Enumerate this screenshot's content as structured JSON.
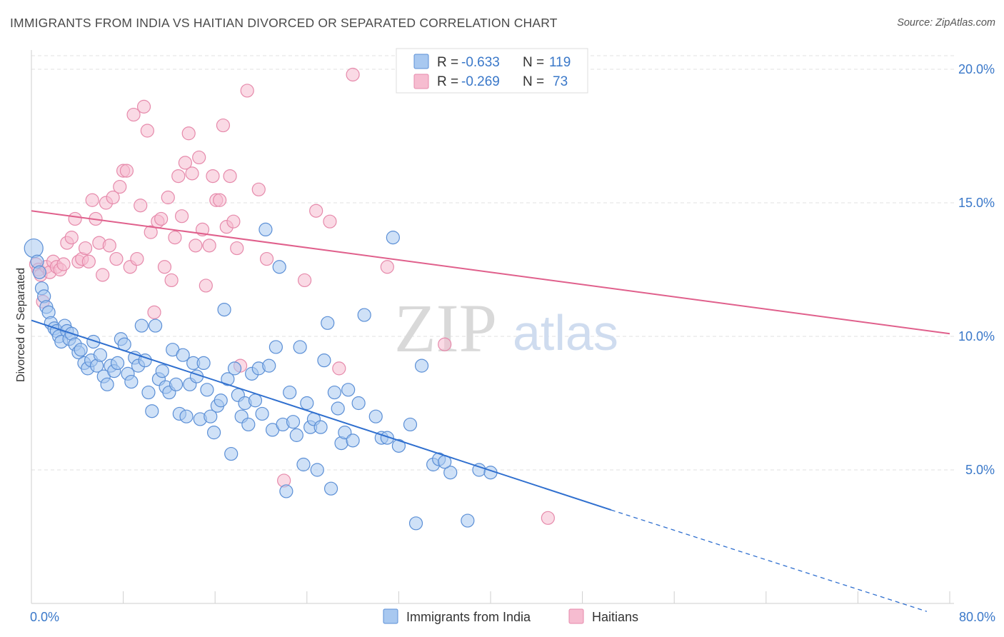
{
  "title": "IMMIGRANTS FROM INDIA VS HAITIAN DIVORCED OR SEPARATED CORRELATION CHART",
  "source": "Source: ZipAtlas.com",
  "watermark": {
    "zip": "ZIP",
    "atlas": "atlas"
  },
  "legend": {
    "r_label": "R =",
    "n_label": "N =",
    "india": {
      "r": "-0.633",
      "n": "119"
    },
    "haiti": {
      "r": "-0.269",
      "n": "73"
    }
  },
  "colors": {
    "india_fill": "#a8c8f0",
    "india_stroke": "#5b8fd6",
    "india_line": "#2f6fcf",
    "haiti_fill": "#f6bcd0",
    "haiti_stroke": "#e68aab",
    "haiti_line": "#e0608c",
    "tick_text": "#3a78c9",
    "grid": "#e1e1e1"
  },
  "chart_data": {
    "type": "scatter",
    "title": "IMMIGRANTS FROM INDIA VS HAITIAN DIVORCED OR SEPARATED CORRELATION CHART",
    "xlabel": "",
    "ylabel": "Divorced or Separated",
    "xlim": [
      0,
      80
    ],
    "ylim": [
      0,
      20
    ],
    "x_tick_labels": [
      "0.0%",
      "80.0%"
    ],
    "y_ticks": [
      5,
      10,
      15,
      20
    ],
    "y_tick_labels": [
      "5.0%",
      "10.0%",
      "15.0%",
      "20.0%"
    ],
    "grid": true,
    "legend_position": "top-center",
    "series": [
      {
        "name": "Immigrants from India",
        "color": "#a8c8f0",
        "trend": {
          "x0": 0,
          "y0": 10.6,
          "x1": 50.5,
          "y1": 3.5,
          "dashed_to_x": 78,
          "dashed_to_y": -0.3
        },
        "points": [
          [
            0.2,
            13.3
          ],
          [
            0.5,
            12.8
          ],
          [
            0.7,
            12.4
          ],
          [
            0.9,
            11.8
          ],
          [
            1.1,
            11.5
          ],
          [
            1.3,
            11.1
          ],
          [
            1.5,
            10.9
          ],
          [
            1.7,
            10.5
          ],
          [
            2.0,
            10.3
          ],
          [
            2.2,
            10.2
          ],
          [
            2.4,
            10.0
          ],
          [
            2.6,
            9.8
          ],
          [
            2.9,
            10.4
          ],
          [
            3.1,
            10.2
          ],
          [
            3.3,
            9.9
          ],
          [
            3.5,
            10.1
          ],
          [
            3.8,
            9.7
          ],
          [
            4.1,
            9.4
          ],
          [
            4.3,
            9.5
          ],
          [
            4.6,
            9.0
          ],
          [
            4.9,
            8.8
          ],
          [
            5.2,
            9.1
          ],
          [
            5.4,
            9.8
          ],
          [
            5.7,
            8.9
          ],
          [
            6.0,
            9.3
          ],
          [
            6.3,
            8.5
          ],
          [
            6.6,
            8.2
          ],
          [
            6.9,
            8.9
          ],
          [
            7.2,
            8.7
          ],
          [
            7.5,
            9.0
          ],
          [
            7.8,
            9.9
          ],
          [
            8.1,
            9.7
          ],
          [
            8.4,
            8.6
          ],
          [
            8.7,
            8.3
          ],
          [
            9.0,
            9.2
          ],
          [
            9.3,
            8.9
          ],
          [
            9.6,
            10.4
          ],
          [
            9.9,
            9.1
          ],
          [
            10.2,
            7.9
          ],
          [
            10.5,
            7.2
          ],
          [
            10.8,
            10.4
          ],
          [
            11.1,
            8.4
          ],
          [
            11.4,
            8.7
          ],
          [
            11.7,
            8.1
          ],
          [
            12.0,
            7.9
          ],
          [
            12.3,
            9.5
          ],
          [
            12.6,
            8.2
          ],
          [
            12.9,
            7.1
          ],
          [
            13.2,
            9.3
          ],
          [
            13.5,
            7.0
          ],
          [
            13.8,
            8.2
          ],
          [
            14.1,
            9.0
          ],
          [
            14.4,
            8.5
          ],
          [
            14.7,
            6.9
          ],
          [
            15.0,
            9.0
          ],
          [
            15.3,
            8.0
          ],
          [
            15.6,
            7.0
          ],
          [
            15.9,
            6.4
          ],
          [
            16.2,
            7.4
          ],
          [
            16.5,
            7.6
          ],
          [
            16.8,
            11.0
          ],
          [
            17.1,
            8.4
          ],
          [
            17.4,
            5.6
          ],
          [
            17.7,
            8.8
          ],
          [
            18.0,
            7.8
          ],
          [
            18.3,
            7.0
          ],
          [
            18.6,
            7.5
          ],
          [
            18.9,
            6.7
          ],
          [
            19.2,
            8.6
          ],
          [
            19.5,
            7.6
          ],
          [
            19.8,
            8.8
          ],
          [
            20.1,
            7.1
          ],
          [
            20.4,
            14.0
          ],
          [
            20.7,
            8.9
          ],
          [
            21.0,
            6.5
          ],
          [
            21.3,
            9.6
          ],
          [
            21.6,
            12.6
          ],
          [
            21.9,
            6.7
          ],
          [
            22.2,
            4.2
          ],
          [
            22.5,
            7.9
          ],
          [
            22.8,
            6.8
          ],
          [
            23.1,
            6.3
          ],
          [
            23.4,
            9.6
          ],
          [
            23.7,
            5.2
          ],
          [
            24.0,
            7.5
          ],
          [
            24.3,
            6.6
          ],
          [
            24.6,
            6.9
          ],
          [
            24.9,
            5.0
          ],
          [
            25.2,
            6.6
          ],
          [
            25.5,
            9.1
          ],
          [
            25.8,
            10.5
          ],
          [
            26.1,
            4.3
          ],
          [
            26.4,
            7.9
          ],
          [
            26.7,
            7.3
          ],
          [
            27.0,
            6.0
          ],
          [
            27.3,
            6.4
          ],
          [
            27.6,
            8.0
          ],
          [
            28.5,
            7.5
          ],
          [
            29.0,
            10.8
          ],
          [
            30.0,
            7.0
          ],
          [
            30.5,
            6.2
          ],
          [
            31.0,
            6.2
          ],
          [
            32.0,
            5.9
          ],
          [
            33.0,
            6.7
          ],
          [
            33.5,
            3.0
          ],
          [
            31.5,
            13.7
          ],
          [
            34.0,
            8.9
          ],
          [
            35.0,
            5.2
          ],
          [
            35.5,
            5.4
          ],
          [
            36.5,
            4.9
          ],
          [
            38.0,
            3.1
          ],
          [
            39.0,
            5.0
          ],
          [
            40.0,
            4.9
          ],
          [
            36.0,
            5.3
          ],
          [
            28.0,
            6.1
          ]
        ]
      },
      {
        "name": "Haitians",
        "color": "#f6bcd0",
        "trend": {
          "x0": 0,
          "y0": 14.7,
          "x1": 80,
          "y1": 10.1
        },
        "points": [
          [
            0.4,
            12.7
          ],
          [
            0.6,
            12.5
          ],
          [
            0.8,
            12.3
          ],
          [
            1.0,
            11.3
          ],
          [
            1.3,
            12.6
          ],
          [
            1.6,
            12.4
          ],
          [
            1.9,
            12.8
          ],
          [
            2.2,
            12.6
          ],
          [
            2.5,
            12.5
          ],
          [
            2.8,
            12.7
          ],
          [
            3.1,
            13.5
          ],
          [
            3.5,
            13.7
          ],
          [
            3.8,
            14.4
          ],
          [
            4.1,
            12.8
          ],
          [
            4.4,
            12.9
          ],
          [
            4.7,
            13.3
          ],
          [
            5.0,
            12.8
          ],
          [
            5.3,
            15.1
          ],
          [
            5.6,
            14.4
          ],
          [
            5.9,
            13.5
          ],
          [
            6.2,
            12.3
          ],
          [
            6.5,
            15.0
          ],
          [
            6.8,
            13.4
          ],
          [
            7.1,
            15.2
          ],
          [
            7.4,
            12.9
          ],
          [
            7.7,
            15.6
          ],
          [
            8.0,
            16.2
          ],
          [
            8.3,
            16.2
          ],
          [
            8.6,
            12.6
          ],
          [
            8.9,
            18.3
          ],
          [
            9.2,
            12.9
          ],
          [
            9.5,
            14.9
          ],
          [
            9.8,
            18.6
          ],
          [
            10.1,
            17.7
          ],
          [
            10.4,
            13.9
          ],
          [
            10.7,
            10.9
          ],
          [
            11.0,
            14.3
          ],
          [
            11.3,
            14.4
          ],
          [
            11.6,
            12.6
          ],
          [
            11.9,
            15.2
          ],
          [
            12.2,
            12.1
          ],
          [
            12.5,
            13.7
          ],
          [
            12.8,
            16.0
          ],
          [
            13.1,
            14.5
          ],
          [
            13.4,
            16.5
          ],
          [
            13.7,
            17.6
          ],
          [
            14.0,
            16.1
          ],
          [
            14.3,
            13.4
          ],
          [
            14.6,
            16.7
          ],
          [
            14.9,
            14.0
          ],
          [
            15.2,
            11.9
          ],
          [
            15.5,
            13.4
          ],
          [
            15.8,
            16.0
          ],
          [
            16.1,
            15.1
          ],
          [
            16.4,
            15.1
          ],
          [
            16.7,
            17.9
          ],
          [
            17.0,
            14.1
          ],
          [
            17.3,
            16.0
          ],
          [
            17.6,
            14.3
          ],
          [
            17.9,
            13.3
          ],
          [
            18.2,
            8.9
          ],
          [
            18.8,
            19.2
          ],
          [
            19.8,
            15.5
          ],
          [
            20.5,
            12.9
          ],
          [
            22.0,
            4.6
          ],
          [
            23.8,
            12.1
          ],
          [
            24.8,
            14.7
          ],
          [
            26.0,
            14.3
          ],
          [
            26.8,
            8.8
          ],
          [
            28.0,
            19.8
          ],
          [
            31.0,
            12.6
          ],
          [
            36.0,
            9.7
          ],
          [
            45.0,
            3.2
          ]
        ]
      }
    ]
  },
  "bottom_legend": {
    "india_label": "Immigrants from India",
    "haiti_label": "Haitians"
  }
}
